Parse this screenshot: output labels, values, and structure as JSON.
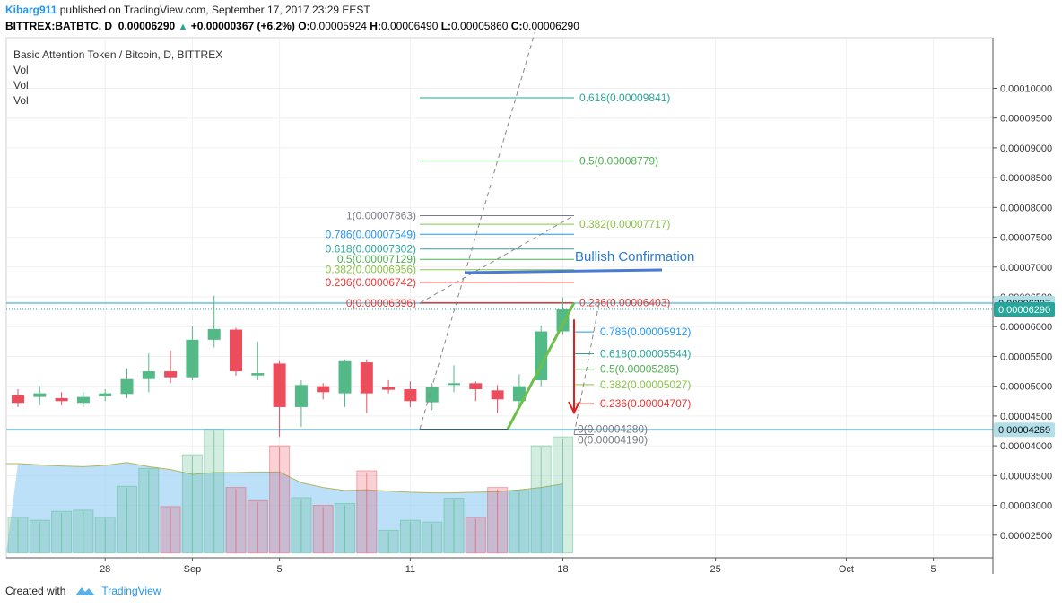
{
  "header": {
    "user": "Kibarg911",
    "published": "published on TradingView.com, September 17, 2017 23:29 EEST",
    "symbol": "BITTREX:BATBTC, D",
    "last": "0.00006290",
    "change": "+0.00000367 (+6.2%)",
    "o_label": "O:",
    "o": "0.00005924",
    "h_label": "H:",
    "h": "0.00006490",
    "l_label": "L:",
    "l": "0.00005860",
    "c_label": "C:",
    "c": "0.00006290"
  },
  "footer": {
    "created": "Created with",
    "brand": "TradingView"
  },
  "colors": {
    "up": "#26a69a",
    "candle_up": "#53b987",
    "candle_down": "#eb4d5c",
    "accent": "#2196f3",
    "price_line": "#5cb8d6",
    "vol_area": "#a6d5f5"
  },
  "chart_data": {
    "type": "candlestick",
    "title": "Basic Attention Token / Bitcoin, D, BITTREX",
    "legend": [
      "Vol",
      "Vol",
      "Vol"
    ],
    "ylim": [
      2.12e-05,
      0.0001085
    ],
    "y_ticks": [
      "0.00010000",
      "0.00009500",
      "0.00009000",
      "0.00008500",
      "0.00008000",
      "0.00007500",
      "0.00007000",
      "0.00006500",
      "0.00006000",
      "0.00005500",
      "0.00005000",
      "0.00004500",
      "0.00004000",
      "0.00003500",
      "0.00003000",
      "0.00002500"
    ],
    "x_labels": [
      {
        "label": "28",
        "i": 4
      },
      {
        "label": "Sep",
        "i": 8
      },
      {
        "label": "5",
        "i": 12
      },
      {
        "label": "11",
        "i": 18
      },
      {
        "label": "18",
        "i": 25
      },
      {
        "label": "25",
        "i": 32
      },
      {
        "label": "Oct",
        "i": 38
      },
      {
        "label": "5",
        "i": 42
      }
    ],
    "candles": [
      [
        4.85e-05,
        4.95e-05,
        4.65e-05,
        4.72e-05
      ],
      [
        4.82e-05,
        5e-05,
        4.68e-05,
        4.88e-05
      ],
      [
        4.8e-05,
        4.9e-05,
        4.68e-05,
        4.75e-05
      ],
      [
        4.72e-05,
        4.9e-05,
        4.65e-05,
        4.82e-05
      ],
      [
        4.83e-05,
        4.95e-05,
        4.75e-05,
        4.88e-05
      ],
      [
        4.87e-05,
        5.3e-05,
        4.8e-05,
        5.12e-05
      ],
      [
        5.12e-05,
        5.55e-05,
        4.9e-05,
        5.25e-05
      ],
      [
        5.25e-05,
        5.6e-05,
        5.05e-05,
        5.15e-05
      ],
      [
        5.15e-05,
        6e-05,
        5.1e-05,
        5.78e-05
      ],
      [
        5.78e-05,
        6.52e-05,
        5.65e-05,
        5.96e-05
      ],
      [
        5.95e-05,
        5.98e-05,
        5.18e-05,
        5.25e-05
      ],
      [
        5.18e-05,
        5.75e-05,
        5.1e-05,
        5.22e-05
      ],
      [
        5.38e-05,
        5.42e-05,
        4.15e-05,
        4.65e-05
      ],
      [
        4.65e-05,
        5.1e-05,
        4.32e-05,
        5.02e-05
      ],
      [
        5e-05,
        5.05e-05,
        4.78e-05,
        4.9e-05
      ],
      [
        4.88e-05,
        5.45e-05,
        4.65e-05,
        5.42e-05
      ],
      [
        5.4e-05,
        5.45e-05,
        4.55e-05,
        4.88e-05
      ],
      [
        4.98e-05,
        5.1e-05,
        4.88e-05,
        4.94e-05
      ],
      [
        4.95e-05,
        5.08e-05,
        4.65e-05,
        4.75e-05
      ],
      [
        4.73e-05,
        5.05e-05,
        4.6e-05,
        4.98e-05
      ],
      [
        5.02e-05,
        5.35e-05,
        4.9e-05,
        5.05e-05
      ],
      [
        5.05e-05,
        5.08e-05,
        4.75e-05,
        4.95e-05
      ],
      [
        4.93e-05,
        5.02e-05,
        4.55e-05,
        4.78e-05
      ],
      [
        4.75e-05,
        5.2e-05,
        4.68e-05,
        5e-05
      ],
      [
        5.1e-05,
        6.02e-05,
        5e-05,
        5.92e-05
      ],
      [
        5.92e-05,
        6.49e-05,
        5.86e-05,
        6.29e-05
      ]
    ],
    "volume": [
      [
        2.8e-05,
        "up"
      ],
      [
        2.75e-05,
        "up"
      ],
      [
        2.9e-05,
        "up"
      ],
      [
        2.92e-05,
        "up"
      ],
      [
        2.8e-05,
        "up"
      ],
      [
        3.32e-05,
        "up"
      ],
      [
        3.62e-05,
        "up"
      ],
      [
        2.98e-05,
        "down"
      ],
      [
        3.85e-05,
        "up"
      ],
      [
        4.28e-05,
        "up"
      ],
      [
        3.3e-05,
        "down"
      ],
      [
        3.08e-05,
        "down"
      ],
      [
        4e-05,
        "down"
      ],
      [
        3.13e-05,
        "up"
      ],
      [
        3e-05,
        "down"
      ],
      [
        3.03e-05,
        "up"
      ],
      [
        3.58e-05,
        "down"
      ],
      [
        2.58e-05,
        "up"
      ],
      [
        2.75e-05,
        "up"
      ],
      [
        2.72e-05,
        "up"
      ],
      [
        3.12e-05,
        "up"
      ],
      [
        2.8e-05,
        "down"
      ],
      [
        3.3e-05,
        "down"
      ],
      [
        3.25e-05,
        "up"
      ],
      [
        4e-05,
        "up"
      ],
      [
        4.15e-05,
        "up"
      ]
    ],
    "volume_ma": [
      3.7e-05,
      3.68e-05,
      3.66e-05,
      3.65e-05,
      3.67e-05,
      3.72e-05,
      3.65e-05,
      3.6e-05,
      3.52e-05,
      3.55e-05,
      3.55e-05,
      3.56e-05,
      3.56e-05,
      3.38e-05,
      3.3e-05,
      3.25e-05,
      3.26e-05,
      3.24e-05,
      3.22e-05,
      3.21e-05,
      3.21e-05,
      3.22e-05,
      3.23e-05,
      3.26e-05,
      3.3e-05,
      3.36e-05
    ],
    "fib_left": {
      "levels": [
        {
          "label": "1(0.00007863)",
          "value": 7.863e-05,
          "color": "#787b86"
        },
        {
          "label": "0.786(0.00007549)",
          "value": 7.549e-05,
          "color": "#2196f3"
        },
        {
          "label": "0.618(0.00007302)",
          "value": 7.302e-05,
          "color": "#26a69a"
        },
        {
          "label": "0.5(0.00007129)",
          "value": 7.129e-05,
          "color": "#4caf50"
        },
        {
          "label": "0.382(0.00006956)",
          "value": 6.956e-05,
          "color": "#8bc34a"
        },
        {
          "label": "0.236(0.00006742)",
          "value": 6.742e-05,
          "color": "#e53935"
        },
        {
          "label": "0(0.00006396)",
          "value": 6.396e-05,
          "color": "#e53935"
        }
      ]
    },
    "fib_ext": {
      "levels": [
        {
          "label": "0.618(0.00009841)",
          "value": 9.841e-05,
          "color": "#26a69a"
        },
        {
          "label": "0.5(0.00008779)",
          "value": 8.779e-05,
          "color": "#4caf50"
        },
        {
          "label": "0.382(0.00007717)",
          "value": 7.717e-05,
          "color": "#8bc34a"
        },
        {
          "label": "0.236(0.00006403)",
          "value": 6.403e-05,
          "color": "#e53935"
        }
      ]
    },
    "fib_right": {
      "levels": [
        {
          "label": "0.786(0.00005912)",
          "value": 5.912e-05,
          "color": "#2196f3"
        },
        {
          "label": "0.618(0.00005544)",
          "value": 5.544e-05,
          "color": "#26a69a"
        },
        {
          "label": "0.5(0.00005285)",
          "value": 5.285e-05,
          "color": "#4caf50"
        },
        {
          "label": "0.382(0.00005027)",
          "value": 5.027e-05,
          "color": "#8bc34a"
        },
        {
          "label": "0.236(0.00004707)",
          "value": 4.707e-05,
          "color": "#e53935"
        },
        {
          "label": "0(0.00004280)",
          "value": 4.28e-05,
          "color": "#787b86"
        },
        {
          "label": "0(0.00004190)",
          "value": 4.19e-05,
          "color": "#787b86"
        }
      ]
    },
    "annotation": "Bullish Confirmation",
    "support_level": 4.27e-05,
    "resistance_level": 6.397e-05,
    "price_labels": [
      {
        "text": "0.00006397",
        "value": 6.397e-05,
        "color": "#b2dfe8"
      },
      {
        "text": "0.00006290",
        "value": 6.29e-05,
        "color": "#26a69a"
      },
      {
        "text": "0.00004269",
        "value": 4.269e-05,
        "color": "#b2dfe8"
      }
    ]
  }
}
